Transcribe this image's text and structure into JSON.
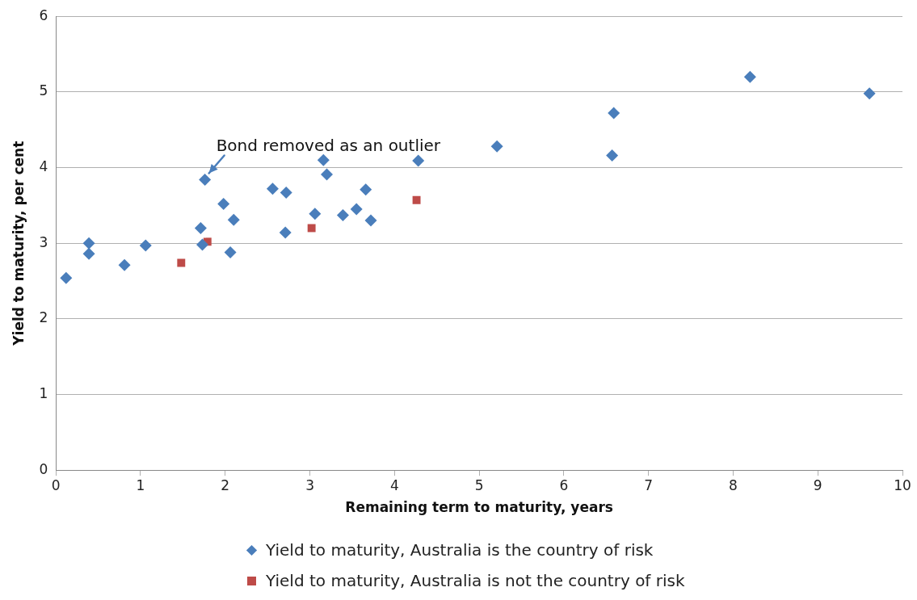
{
  "chart_data": {
    "type": "scatter",
    "xlabel": "Remaining term to maturity, years",
    "ylabel": "Yield to maturity, per cent",
    "xlim": [
      0,
      10
    ],
    "xticks": [
      0,
      1,
      2,
      3,
      4,
      5,
      6,
      7,
      8,
      9,
      10
    ],
    "ylim": [
      0,
      6
    ],
    "yticks": [
      0,
      1,
      2,
      3,
      4,
      5,
      6
    ],
    "grid": "y",
    "legend": "bottom",
    "annotations": [
      {
        "text": "Bond removed as an outlier",
        "x": 1.76,
        "y": 3.84
      }
    ],
    "series": [
      {
        "name": "Yield to maturity, Australia is the country of risk",
        "color": "#4a7ebb",
        "marker": "diamond",
        "x": [
          0.12,
          0.39,
          0.39,
          0.81,
          1.06,
          1.71,
          1.73,
          1.76,
          1.98,
          2.06,
          2.1,
          2.56,
          2.72,
          2.71,
          3.06,
          3.16,
          3.2,
          3.39,
          3.55,
          3.66,
          3.72,
          4.28,
          5.21,
          6.59,
          6.57,
          8.2,
          9.61
        ],
        "values": [
          2.54,
          3.0,
          2.86,
          2.71,
          2.97,
          3.2,
          2.98,
          3.84,
          3.52,
          2.88,
          3.31,
          3.72,
          3.67,
          3.14,
          3.39,
          4.1,
          3.91,
          3.37,
          3.45,
          3.71,
          3.3,
          4.09,
          4.28,
          4.72,
          4.16,
          5.2,
          4.98
        ]
      },
      {
        "name": "Yield to maturity, Australia is not the country of risk",
        "color": "#be4b48",
        "marker": "square",
        "x": [
          1.48,
          1.79,
          3.02,
          4.26
        ],
        "values": [
          2.74,
          3.02,
          3.2,
          3.57
        ]
      }
    ]
  }
}
